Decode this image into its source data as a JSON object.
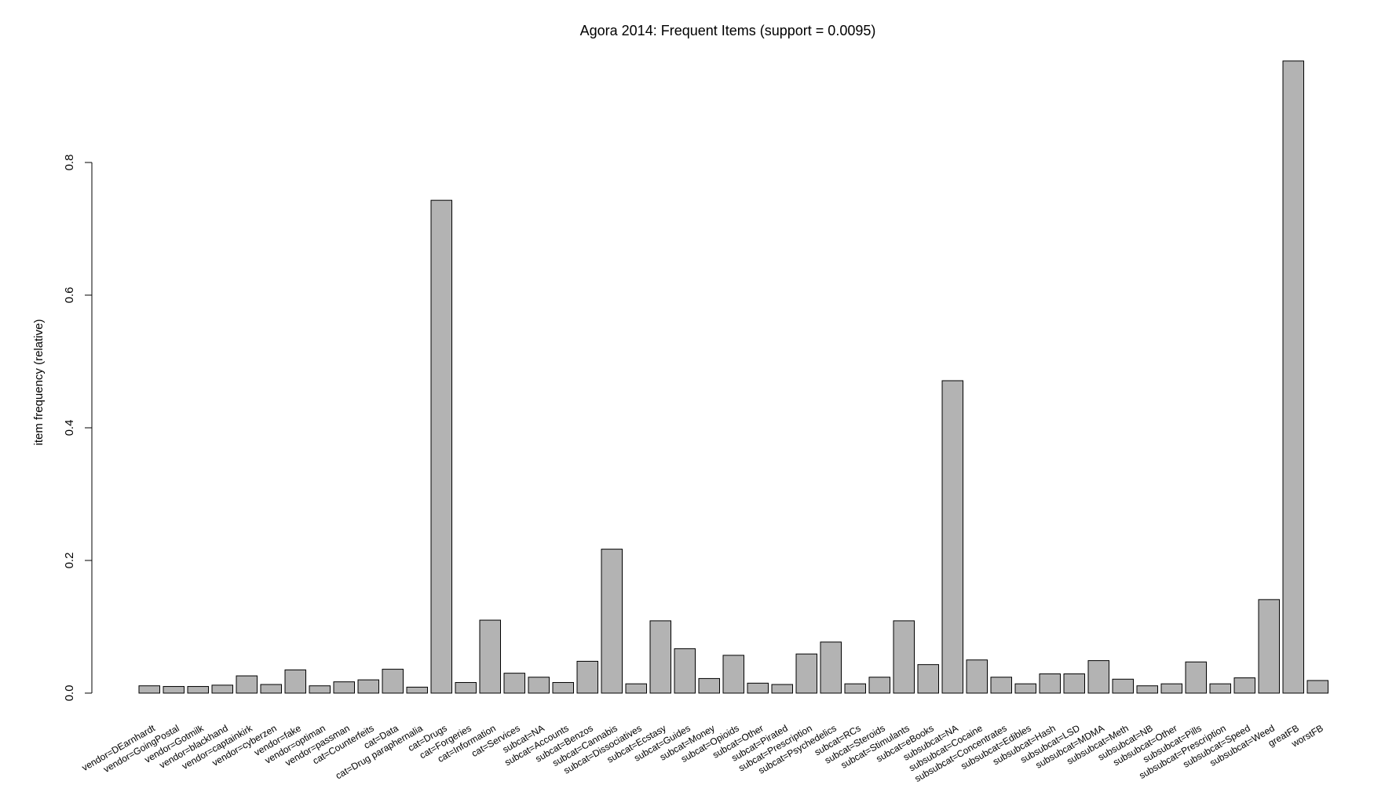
{
  "chart_data": {
    "type": "bar",
    "title": "Agora 2014: Frequent Items (support = 0.0095)",
    "xlabel": "",
    "ylabel": "item frequency (relative)",
    "ylim": [
      0,
      0.96
    ],
    "yticks": [
      "0.0",
      "0.2",
      "0.4",
      "0.6",
      "0.8"
    ],
    "grid": false,
    "legend": "none",
    "bar_color": "#b3b3b3",
    "bar_border_color": "#000000",
    "categories": [
      "vendor=DEarnhardt",
      "vendor=GoingPostal",
      "vendor=Gotmilk",
      "vendor=blackhand",
      "vendor=captainkirk",
      "vendor=cyberzen",
      "vendor=fake",
      "vendor=optiman",
      "vendor=passman",
      "cat=Counterfeits",
      "cat=Data",
      "cat=Drug paraphernalia",
      "cat=Drugs",
      "cat=Forgeries",
      "cat=Information",
      "cat=Services",
      "subcat=NA",
      "subcat=Accounts",
      "subcat=Benzos",
      "subcat=Cannabis",
      "subcat=Dissociatives",
      "subcat=Ecstasy",
      "subcat=Guides",
      "subcat=Money",
      "subcat=Opioids",
      "subcat=Other",
      "subcat=Pirated",
      "subcat=Prescription",
      "subcat=Psychedelics",
      "subcat=RCs",
      "subcat=Steroids",
      "subcat=Stimulants",
      "subcat=eBooks",
      "subsubcat=NA",
      "subsubcat=Cocaine",
      "subsubcat=Concentrates",
      "subsubcat=Edibles",
      "subsubcat=Hash",
      "subsubcat=LSD",
      "subsubcat=MDMA",
      "subsubcat=Meth",
      "subsubcat=NB",
      "subsubcat=Other",
      "subsubcat=Pills",
      "subsubcat=Prescription",
      "subsubcat=Speed",
      "subsubcat=Weed",
      "greatFB",
      "worstFB"
    ],
    "values": [
      0.011,
      0.01,
      0.01,
      0.012,
      0.026,
      0.013,
      0.035,
      0.011,
      0.017,
      0.02,
      0.036,
      0.009,
      0.743,
      0.016,
      0.11,
      0.03,
      0.024,
      0.016,
      0.048,
      0.217,
      0.014,
      0.109,
      0.067,
      0.022,
      0.057,
      0.015,
      0.013,
      0.059,
      0.077,
      0.014,
      0.024,
      0.109,
      0.043,
      0.471,
      0.05,
      0.024,
      0.014,
      0.029,
      0.029,
      0.049,
      0.021,
      0.011,
      0.014,
      0.047,
      0.014,
      0.023,
      0.141,
      0.953,
      0.019
    ]
  }
}
